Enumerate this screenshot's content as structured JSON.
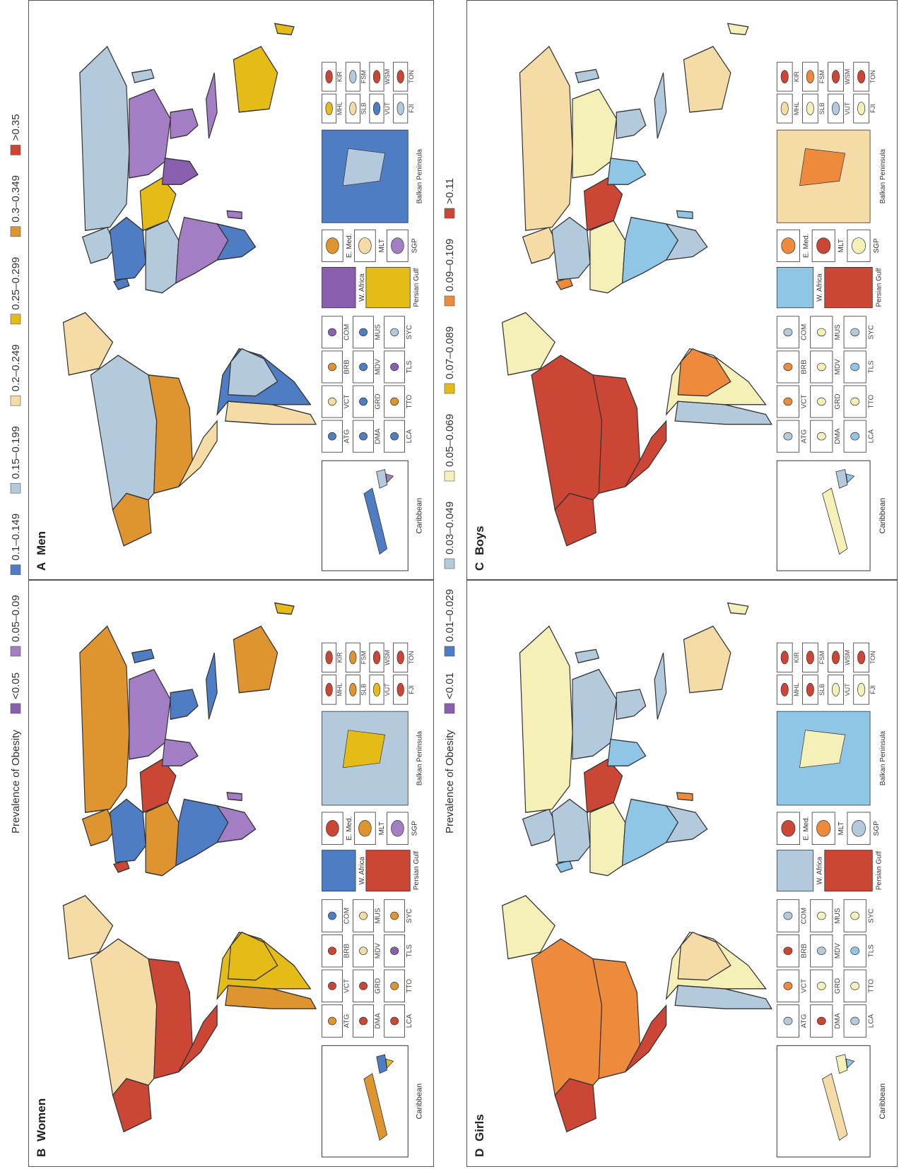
{
  "legend_top": {
    "title": "Prevalence of Obesity",
    "items": [
      {
        "label": "<0.05",
        "color": "#8b5fb0"
      },
      {
        "label": "0.05–0.09",
        "color": "#a47ec4"
      },
      {
        "label": "0.1–0.149",
        "color": "#4f7dc4"
      },
      {
        "label": "0.15–0.199",
        "color": "#b3c9dc"
      },
      {
        "label": "0.2–0.249",
        "color": "#f5dca6"
      },
      {
        "label": "0.25–0.299",
        "color": "#e5bb18"
      },
      {
        "label": "0.3–0.349",
        "color": "#df952f"
      },
      {
        "label": ">0.35",
        "color": "#cc4636"
      }
    ]
  },
  "legend_middle": {
    "title": "Prevalence of Obesity",
    "items": [
      {
        "label": "<0.01",
        "color": "#8b5fb0"
      },
      {
        "label": "0.01–0.029",
        "color": "#4f7dc4"
      },
      {
        "label": "0.03–0.049",
        "color": "#b3c9dc"
      },
      {
        "label": "0.05–0.069",
        "color": "#f5efb8"
      },
      {
        "label": "0.07–0.089",
        "color": "#e5bb18"
      },
      {
        "label": "0.09–0.109",
        "color": "#ee8a3c"
      },
      {
        "label": ">0.11",
        "color": "#cc4636"
      }
    ]
  },
  "panels": [
    {
      "letter": "A",
      "title": "Men",
      "colors": {
        "canada": "#b3c9dc",
        "usa": "#df952f",
        "mexico": "#f5dca6",
        "alaska": "#df952f",
        "greenland": "#f5dca6",
        "brazil": "#b3c9dc",
        "south_america_rest": "#4f7dc4",
        "andes": "#f5dca6",
        "europe": "#4f7dc4",
        "russia": "#b3c9dc",
        "china": "#a47ec4",
        "india": "#8b5fb0",
        "middle_east": "#e5bb18",
        "africa_north": "#b3c9dc",
        "africa_sub": "#a47ec4",
        "africa_south": "#4f7dc4",
        "australia": "#e5bb18",
        "se_asia": "#a47ec4",
        "japan": "#b3c9dc",
        "indonesia": "#a47ec4",
        "new_zealand": "#e5bb18",
        "madagascar": "#a47ec4",
        "uk": "#4f7dc4",
        "scandinavia": "#b3c9dc"
      },
      "insets": {
        "caribbean_label": "Caribbean",
        "caribbean_color": "#4f7dc4",
        "caribbean_color2": "#a47ec4",
        "caribbean_color3": "#b3c9dc",
        "w_africa": "W. Africa",
        "w_africa_color": "#8b5fb0",
        "persian_gulf": "Persian Gulf",
        "persian_color": "#e5bb18",
        "e_med": "E. Med.",
        "e_med_color": "#df952f",
        "mlt": "MLT",
        "mlt_color": "#f5dca6",
        "sgp": "SGP",
        "sgp_color": "#a47ec4",
        "balkan": "Balkan Peninsula",
        "balkan_color": "#4f7dc4",
        "balkan_color2": "#b3c9dc"
      },
      "islands": [
        {
          "code": "ATG",
          "color": "#4f7dc4"
        },
        {
          "code": "VCT",
          "color": "#f5dca6"
        },
        {
          "code": "BRB",
          "color": "#df952f"
        },
        {
          "code": "COM",
          "color": "#8b5fb0"
        },
        {
          "code": "DMA",
          "color": "#4f7dc4"
        },
        {
          "code": "GRD",
          "color": "#4f7dc4"
        },
        {
          "code": "MDV",
          "color": "#4f7dc4"
        },
        {
          "code": "MUS",
          "color": "#4f7dc4"
        },
        {
          "code": "LCA",
          "color": "#4f7dc4"
        },
        {
          "code": "TTO",
          "color": "#df952f"
        },
        {
          "code": "TLS",
          "color": "#8b5fb0"
        },
        {
          "code": "SYC",
          "color": "#b3c9dc"
        }
      ],
      "pacific": [
        {
          "code": "MHL",
          "color": "#e5bb18"
        },
        {
          "code": "KIR",
          "color": "#cc4636"
        },
        {
          "code": "SLB",
          "color": "#f5dca6"
        },
        {
          "code": "FSM",
          "color": "#b3c9dc"
        },
        {
          "code": "VUT",
          "color": "#4f7dc4"
        },
        {
          "code": "WSM",
          "color": "#cc4636"
        },
        {
          "code": "FJI",
          "color": "#b3c9dc"
        },
        {
          "code": "TON",
          "color": "#cc4636"
        }
      ]
    },
    {
      "letter": "B",
      "title": "Women",
      "colors": {
        "canada": "#f5dca6",
        "usa": "#cc4636",
        "mexico": "#cc4636",
        "alaska": "#cc4636",
        "greenland": "#f5dca6",
        "brazil": "#e5bb18",
        "south_america_rest": "#e5bb18",
        "andes": "#df952f",
        "europe": "#4f7dc4",
        "russia": "#df952f",
        "china": "#a47ec4",
        "india": "#a47ec4",
        "middle_east": "#cc4636",
        "africa_north": "#df952f",
        "africa_sub": "#4f7dc4",
        "africa_south": "#a47ec4",
        "australia": "#df952f",
        "se_asia": "#4f7dc4",
        "japan": "#4f7dc4",
        "indonesia": "#4f7dc4",
        "new_zealand": "#e5bb18",
        "madagascar": "#a47ec4",
        "uk": "#cc4636",
        "scandinavia": "#df952f"
      },
      "insets": {
        "caribbean_label": "Caribbean",
        "caribbean_color": "#df952f",
        "caribbean_color2": "#e5bb18",
        "caribbean_color3": "#4f7dc4",
        "w_africa": "W. Africa",
        "w_africa_color": "#4f7dc4",
        "persian_gulf": "Persian Gulf",
        "persian_color": "#cc4636",
        "e_med": "E. Med.",
        "e_med_color": "#cc4636",
        "mlt": "MLT",
        "mlt_color": "#df952f",
        "sgp": "SGP",
        "sgp_color": "#a47ec4",
        "balkan": "Balkan Peninsula",
        "balkan_color": "#b3c9dc",
        "balkan_color2": "#e5bb18"
      },
      "islands": [
        {
          "code": "ATG",
          "color": "#df952f"
        },
        {
          "code": "VCT",
          "color": "#cc4636"
        },
        {
          "code": "BRB",
          "color": "#cc4636"
        },
        {
          "code": "COM",
          "color": "#4f7dc4"
        },
        {
          "code": "DMA",
          "color": "#cc4636"
        },
        {
          "code": "GRD",
          "color": "#cc4636"
        },
        {
          "code": "MDV",
          "color": "#f5dca6"
        },
        {
          "code": "MUS",
          "color": "#f5dca6"
        },
        {
          "code": "LCA",
          "color": "#cc4636"
        },
        {
          "code": "TTO",
          "color": "#df952f"
        },
        {
          "code": "TLS",
          "color": "#8b5fb0"
        },
        {
          "code": "SYC",
          "color": "#df952f"
        }
      ],
      "pacific": [
        {
          "code": "MHL",
          "color": "#cc4636"
        },
        {
          "code": "KIR",
          "color": "#cc4636"
        },
        {
          "code": "SLB",
          "color": "#df952f"
        },
        {
          "code": "FSM",
          "color": "#df952f"
        },
        {
          "code": "VUT",
          "color": "#e5bb18"
        },
        {
          "code": "WSM",
          "color": "#cc4636"
        },
        {
          "code": "FJI",
          "color": "#cc4636"
        },
        {
          "code": "TON",
          "color": "#cc4636"
        }
      ]
    },
    {
      "letter": "C",
      "title": "Boys",
      "colors": {
        "canada": "#cc4636",
        "usa": "#cc4636",
        "mexico": "#cc4636",
        "alaska": "#cc4636",
        "greenland": "#f5efb8",
        "brazil": "#ee8a3c",
        "south_america_rest": "#f5efb8",
        "andes": "#b3c9dc",
        "europe": "#b3c9dc",
        "russia": "#f5dca6",
        "china": "#f5efb8",
        "india": "#8fc6e6",
        "middle_east": "#cc4636",
        "africa_north": "#f5efb8",
        "africa_sub": "#8fc6e6",
        "africa_south": "#b3c9dc",
        "australia": "#f5dca6",
        "se_asia": "#b3c9dc",
        "japan": "#b3c9dc",
        "indonesia": "#b3c9dc",
        "new_zealand": "#f5efb8",
        "madagascar": "#8fc6e6",
        "uk": "#ee8a3c",
        "scandinavia": "#f5dca6"
      },
      "insets": {
        "caribbean_label": "Caribbean",
        "caribbean_color": "#f5efb8",
        "caribbean_color2": "#8fc6e6",
        "caribbean_color3": "#b3c9dc",
        "w_africa": "W. Africa",
        "w_africa_color": "#8fc6e6",
        "persian_gulf": "Persian Gulf",
        "persian_color": "#cc4636",
        "e_med": "E. Med.",
        "e_med_color": "#ee8a3c",
        "mlt": "MLT",
        "mlt_color": "#cc4636",
        "sgp": "SGP",
        "sgp_color": "#f5efb8",
        "balkan": "Balkan Peninsula",
        "balkan_color": "#f5dca6",
        "balkan_color2": "#ee8a3c"
      },
      "islands": [
        {
          "code": "ATG",
          "color": "#b3c9dc"
        },
        {
          "code": "VCT",
          "color": "#ee8a3c"
        },
        {
          "code": "BRB",
          "color": "#ee8a3c"
        },
        {
          "code": "COM",
          "color": "#b3c9dc"
        },
        {
          "code": "DMA",
          "color": "#f5efb8"
        },
        {
          "code": "GRD",
          "color": "#f5efb8"
        },
        {
          "code": "MDV",
          "color": "#f5efb8"
        },
        {
          "code": "MUS",
          "color": "#f5efb8"
        },
        {
          "code": "LCA",
          "color": "#8fc6e6"
        },
        {
          "code": "TTO",
          "color": "#f5efb8"
        },
        {
          "code": "TLS",
          "color": "#8fc6e6"
        },
        {
          "code": "SYC",
          "color": "#b3c9dc"
        }
      ],
      "pacific": [
        {
          "code": "MHL",
          "color": "#f5dca6"
        },
        {
          "code": "KIR",
          "color": "#cc4636"
        },
        {
          "code": "SLB",
          "color": "#f5efb8"
        },
        {
          "code": "FSM",
          "color": "#ee8a3c"
        },
        {
          "code": "VUT",
          "color": "#b3c9dc"
        },
        {
          "code": "WSM",
          "color": "#cc4636"
        },
        {
          "code": "FJI",
          "color": "#f5efb8"
        },
        {
          "code": "TON",
          "color": "#cc4636"
        }
      ]
    },
    {
      "letter": "D",
      "title": "Girls",
      "colors": {
        "canada": "#ee8a3c",
        "usa": "#ee8a3c",
        "mexico": "#cc4636",
        "alaska": "#cc4636",
        "greenland": "#f5efb8",
        "brazil": "#f5dca6",
        "south_america_rest": "#f5efb8",
        "andes": "#b3c9dc",
        "europe": "#b3c9dc",
        "russia": "#f5efb8",
        "china": "#b3c9dc",
        "india": "#8fc6e6",
        "middle_east": "#cc4636",
        "africa_north": "#f5efb8",
        "africa_sub": "#8fc6e6",
        "africa_south": "#b3c9dc",
        "australia": "#f5dca6",
        "se_asia": "#b3c9dc",
        "japan": "#b3c9dc",
        "indonesia": "#b3c9dc",
        "new_zealand": "#f5efb8",
        "madagascar": "#ee8a3c",
        "uk": "#8fc6e6",
        "scandinavia": "#b3c9dc"
      },
      "insets": {
        "caribbean_label": "Caribbean",
        "caribbean_color": "#f5dca6",
        "caribbean_color2": "#8fc6e6",
        "caribbean_color3": "#f5efb8",
        "w_africa": "W. Africa",
        "w_africa_color": "#b3c9dc",
        "persian_gulf": "Persian Gulf",
        "persian_color": "#cc4636",
        "e_med": "E. Med.",
        "e_med_color": "#cc4636",
        "mlt": "MLT",
        "mlt_color": "#ee8a3c",
        "sgp": "SGP",
        "sgp_color": "#b3c9dc",
        "balkan": "Balkan Peninsula",
        "balkan_color": "#8fc6e6",
        "balkan_color2": "#f5efb8"
      },
      "islands": [
        {
          "code": "ATG",
          "color": "#b3c9dc"
        },
        {
          "code": "VCT",
          "color": "#ee8a3c"
        },
        {
          "code": "BRB",
          "color": "#cc4636"
        },
        {
          "code": "COM",
          "color": "#b3c9dc"
        },
        {
          "code": "DMA",
          "color": "#cc4636"
        },
        {
          "code": "GRD",
          "color": "#f5efb8"
        },
        {
          "code": "MDV",
          "color": "#b3c9dc"
        },
        {
          "code": "MUS",
          "color": "#f5efb8"
        },
        {
          "code": "LCA",
          "color": "#b3c9dc"
        },
        {
          "code": "TTO",
          "color": "#f5efb8"
        },
        {
          "code": "TLS",
          "color": "#8fc6e6"
        },
        {
          "code": "SYC",
          "color": "#f5efb8"
        }
      ],
      "pacific": [
        {
          "code": "MHL",
          "color": "#cc4636"
        },
        {
          "code": "KIR",
          "color": "#cc4636"
        },
        {
          "code": "SLB",
          "color": "#cc4636"
        },
        {
          "code": "FSM",
          "color": "#cc4636"
        },
        {
          "code": "VUT",
          "color": "#f5efb8"
        },
        {
          "code": "WSM",
          "color": "#cc4636"
        },
        {
          "code": "FJI",
          "color": "#f5efb8"
        },
        {
          "code": "TON",
          "color": "#cc4636"
        }
      ]
    }
  ]
}
